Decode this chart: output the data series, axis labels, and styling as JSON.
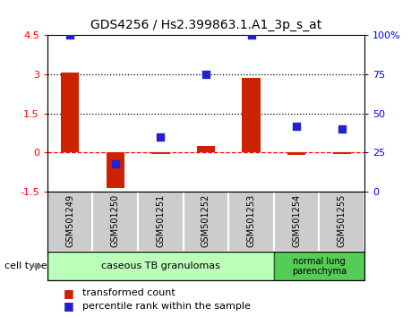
{
  "title": "GDS4256 / Hs2.399863.1.A1_3p_s_at",
  "samples": [
    "GSM501249",
    "GSM501250",
    "GSM501251",
    "GSM501252",
    "GSM501253",
    "GSM501254",
    "GSM501255"
  ],
  "transformed_count": [
    3.05,
    -1.35,
    -0.05,
    0.25,
    2.85,
    -0.08,
    -0.07
  ],
  "percentile_rank": [
    100,
    18,
    35,
    75,
    100,
    42,
    40
  ],
  "ylim_left": [
    -1.5,
    4.5
  ],
  "ylim_right": [
    0,
    100
  ],
  "right_ticks": [
    0,
    25,
    50,
    75,
    100
  ],
  "right_tick_labels": [
    "0",
    "25",
    "50",
    "75",
    "100%"
  ],
  "left_ticks": [
    -1.5,
    0,
    1.5,
    3,
    4.5
  ],
  "left_tick_labels": [
    "-1.5",
    "0",
    "1.5",
    "3",
    "4.5"
  ],
  "bar_color": "#cc2200",
  "dot_color": "#2222cc",
  "group1_label": "caseous TB granulomas",
  "group2_label": "normal lung\nparenchyma",
  "group1_color": "#bbffbb",
  "group2_color": "#55cc55",
  "group1_edge": "#226622",
  "group2_edge": "#226622",
  "cell_type_label": "cell type",
  "legend_bar_label": "transformed count",
  "legend_dot_label": "percentile rank within the sample",
  "bar_width": 0.4,
  "dot_size": 40,
  "sample_box_color": "#cccccc",
  "sample_box_edge": "#ffffff",
  "title_fontsize": 10,
  "tick_fontsize": 8,
  "label_fontsize": 7,
  "legend_fontsize": 8
}
